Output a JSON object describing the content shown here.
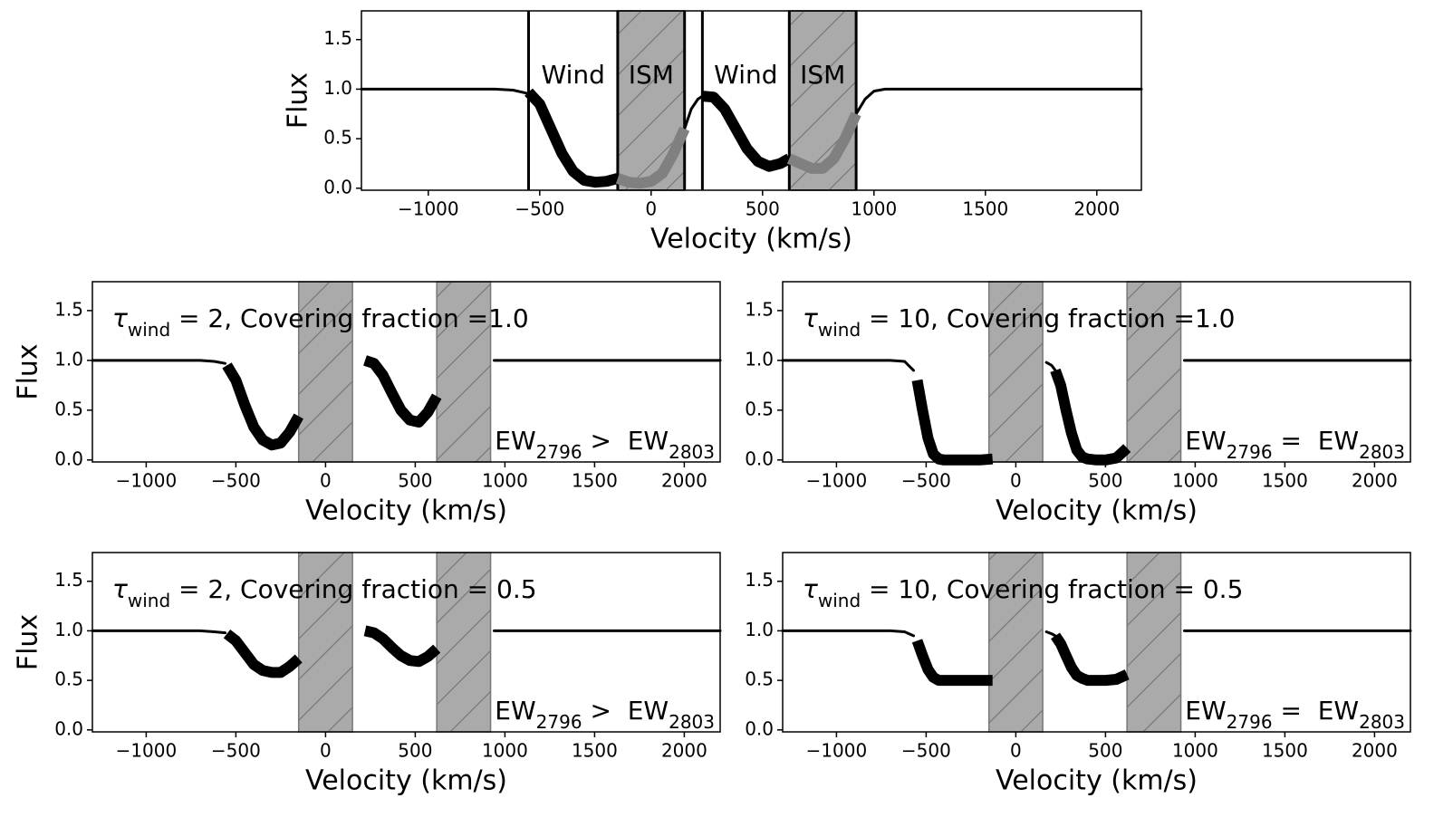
{
  "chart_data": [
    {
      "type": "line",
      "xlabel": "Velocity (km/s)",
      "ylabel": "Flux",
      "xlim": [
        -1300,
        2200
      ],
      "ylim": [
        -0.02,
        1.79
      ],
      "xticks": [
        {
          "value": -1000,
          "label": "−1000"
        },
        {
          "value": -500,
          "label": "−500"
        },
        0,
        500,
        1000,
        1500,
        2000
      ],
      "yticks": [
        {
          "value": 0,
          "label": "0.0"
        },
        0.5,
        {
          "value": 1,
          "label": "1.0"
        },
        1.5
      ],
      "spans": [
        [
          -150,
          150
        ],
        [
          620,
          920
        ]
      ],
      "span_color": "#aaaaaa",
      "span_edge": "#000000",
      "vlines": [
        -550,
        -150,
        150,
        230,
        620,
        920
      ],
      "region_labels": [
        "Wind",
        "ISM",
        "Wind",
        "ISM"
      ],
      "series": [
        {
          "style": "thin",
          "color": "#000000",
          "x": [
            -1300,
            -700,
            -620,
            -560,
            0,
            150,
            180,
            210,
            230,
            500,
            920,
            960,
            1000,
            1050,
            2200
          ],
          "values": [
            1,
            1,
            0.99,
            0.96,
            null,
            0.6,
            0.8,
            0.9,
            0.93,
            null,
            0.75,
            0.9,
            0.98,
            1,
            1
          ]
        },
        {
          "style": "thick",
          "color": "#000000",
          "x": [
            -550,
            -500,
            -450,
            -400,
            -350,
            -300,
            -250,
            -200,
            -150
          ],
          "values": [
            0.97,
            0.85,
            0.6,
            0.35,
            0.17,
            0.08,
            0.06,
            0.07,
            0.1
          ]
        },
        {
          "style": "thick",
          "color": "#808080",
          "x": [
            -150,
            -100,
            -50,
            0,
            50,
            100,
            150
          ],
          "values": [
            0.1,
            0.06,
            0.05,
            0.07,
            0.15,
            0.35,
            0.6
          ]
        },
        {
          "style": "thick",
          "color": "#000000",
          "x": [
            230,
            280,
            330,
            380,
            430,
            480,
            530,
            580,
            620
          ],
          "values": [
            0.93,
            0.92,
            0.8,
            0.6,
            0.4,
            0.27,
            0.22,
            0.25,
            0.3
          ]
        },
        {
          "style": "thick",
          "color": "#808080",
          "x": [
            620,
            670,
            720,
            770,
            820,
            870,
            920
          ],
          "values": [
            0.3,
            0.25,
            0.2,
            0.2,
            0.3,
            0.5,
            0.75
          ]
        }
      ]
    },
    {
      "type": "line",
      "xlabel": "Velocity (km/s)",
      "ylabel": "Flux",
      "xlim": [
        -1300,
        2200
      ],
      "ylim": [
        -0.02,
        1.79
      ],
      "xticks": [
        {
          "value": -1000,
          "label": "−1000"
        },
        {
          "value": -500,
          "label": "−500"
        },
        0,
        500,
        1000,
        1500,
        2000
      ],
      "yticks": [
        {
          "value": 0,
          "label": "0.0"
        },
        0.5,
        {
          "value": 1,
          "label": "1.0"
        },
        1.5
      ],
      "spans": [
        [
          -150,
          150
        ],
        [
          620,
          920
        ]
      ],
      "span_color": "#aaaaaa",
      "span_edge": "#777777",
      "annotations": [
        {
          "parts": [
            {
              "text": "τ"
            },
            {
              "text": "wind",
              "sub": true
            },
            {
              "text": " = 2, Covering fraction =1.0"
            }
          ]
        },
        {
          "parts": [
            {
              "text": "EW"
            },
            {
              "text": "2796",
              "sub": true
            },
            {
              "text": " >  EW"
            },
            {
              "text": "2803",
              "sub": true
            }
          ]
        }
      ],
      "series": [
        {
          "style": "thin",
          "color": "#000000",
          "x": [
            -1300,
            -700,
            -620,
            -560,
            0,
            940,
            2200
          ],
          "values": [
            1,
            1,
            0.99,
            0.97,
            null,
            1,
            1
          ]
        },
        {
          "style": "thick",
          "color": "#000000",
          "x": [
            -550,
            -500,
            -450,
            -400,
            -350,
            -300,
            -250,
            -200,
            -150
          ],
          "values": [
            0.95,
            0.8,
            0.55,
            0.33,
            0.2,
            0.15,
            0.17,
            0.28,
            0.44
          ]
        },
        {
          "style": "thick",
          "color": "#000000",
          "x": [
            220,
            270,
            320,
            370,
            420,
            470,
            520,
            570,
            620
          ],
          "values": [
            1,
            0.97,
            0.85,
            0.67,
            0.5,
            0.4,
            0.38,
            0.48,
            0.64
          ]
        }
      ]
    },
    {
      "type": "line",
      "xlabel": "Velocity (km/s)",
      "xlim": [
        -1300,
        2200
      ],
      "ylim": [
        -0.02,
        1.79
      ],
      "xticks": [
        {
          "value": -1000,
          "label": "−1000"
        },
        {
          "value": -500,
          "label": "−500"
        },
        0,
        500,
        1000,
        1500,
        2000
      ],
      "yticks": [
        {
          "value": 0,
          "label": "0.0"
        },
        0.5,
        {
          "value": 1,
          "label": "1.0"
        },
        1.5
      ],
      "spans": [
        [
          -150,
          150
        ],
        [
          620,
          920
        ]
      ],
      "span_color": "#aaaaaa",
      "span_edge": "#777777",
      "annotations": [
        {
          "parts": [
            {
              "text": "τ"
            },
            {
              "text": "wind",
              "sub": true
            },
            {
              "text": " = 10, Covering fraction =1.0"
            }
          ]
        },
        {
          "parts": [
            {
              "text": "EW"
            },
            {
              "text": "2796",
              "sub": true
            },
            {
              "text": " =  EW"
            },
            {
              "text": "2803",
              "sub": true
            }
          ]
        }
      ],
      "series": [
        {
          "style": "thin",
          "color": "#000000",
          "x": [
            -1300,
            -700,
            -620,
            -570,
            0,
            170,
            200,
            220,
            500,
            940,
            2200
          ],
          "values": [
            1,
            1,
            0.99,
            0.9,
            null,
            0.98,
            0.95,
            0.9,
            null,
            1,
            1
          ]
        },
        {
          "style": "thick",
          "color": "#000000",
          "x": [
            -550,
            -520,
            -490,
            -460,
            -430,
            -400,
            -300,
            -200,
            -130
          ],
          "values": [
            0.8,
            0.5,
            0.22,
            0.06,
            0.01,
            0,
            0,
            0,
            0.01
          ]
        },
        {
          "style": "thick",
          "color": "#000000",
          "x": [
            220,
            250,
            280,
            310,
            340,
            370,
            400,
            450,
            500,
            560,
            620
          ],
          "values": [
            0.9,
            0.75,
            0.5,
            0.27,
            0.1,
            0.03,
            0.01,
            0,
            0,
            0.02,
            0.12
          ]
        }
      ]
    },
    {
      "type": "line",
      "xlabel": "Velocity (km/s)",
      "ylabel": "Flux",
      "xlim": [
        -1300,
        2200
      ],
      "ylim": [
        -0.02,
        1.79
      ],
      "xticks": [
        {
          "value": -1000,
          "label": "−1000"
        },
        {
          "value": -500,
          "label": "−500"
        },
        0,
        500,
        1000,
        1500,
        2000
      ],
      "yticks": [
        {
          "value": 0,
          "label": "0.0"
        },
        0.5,
        {
          "value": 1,
          "label": "1.0"
        },
        1.5
      ],
      "spans": [
        [
          -150,
          150
        ],
        [
          620,
          920
        ]
      ],
      "span_color": "#aaaaaa",
      "span_edge": "#777777",
      "annotations": [
        {
          "parts": [
            {
              "text": "τ"
            },
            {
              "text": "wind",
              "sub": true
            },
            {
              "text": " = 2, Covering fraction = 0.5"
            }
          ]
        },
        {
          "parts": [
            {
              "text": "EW"
            },
            {
              "text": "2796",
              "sub": true
            },
            {
              "text": " >  EW"
            },
            {
              "text": "2803",
              "sub": true
            }
          ]
        }
      ],
      "series": [
        {
          "style": "thin",
          "color": "#000000",
          "x": [
            -1300,
            -700,
            -620,
            -560,
            0,
            940,
            2200
          ],
          "values": [
            1,
            1,
            0.99,
            0.98,
            null,
            1,
            1
          ]
        },
        {
          "style": "thick",
          "color": "#000000",
          "x": [
            -550,
            -500,
            -450,
            -400,
            -350,
            -300,
            -250,
            -200,
            -150
          ],
          "values": [
            0.97,
            0.9,
            0.78,
            0.66,
            0.6,
            0.58,
            0.58,
            0.64,
            0.72
          ]
        },
        {
          "style": "thick",
          "color": "#000000",
          "x": [
            220,
            270,
            320,
            370,
            420,
            470,
            520,
            570,
            620
          ],
          "values": [
            1,
            0.98,
            0.92,
            0.83,
            0.75,
            0.7,
            0.69,
            0.74,
            0.82
          ]
        }
      ]
    },
    {
      "type": "line",
      "xlabel": "Velocity (km/s)",
      "xlim": [
        -1300,
        2200
      ],
      "ylim": [
        -0.02,
        1.79
      ],
      "xticks": [
        {
          "value": -1000,
          "label": "−1000"
        },
        {
          "value": -500,
          "label": "−500"
        },
        0,
        500,
        1000,
        1500,
        2000
      ],
      "yticks": [
        {
          "value": 0,
          "label": "0.0"
        },
        0.5,
        {
          "value": 1,
          "label": "1.0"
        },
        1.5
      ],
      "spans": [
        [
          -150,
          150
        ],
        [
          620,
          920
        ]
      ],
      "span_color": "#aaaaaa",
      "span_edge": "#777777",
      "annotations": [
        {
          "parts": [
            {
              "text": "τ"
            },
            {
              "text": "wind",
              "sub": true
            },
            {
              "text": " = 10, Covering fraction = 0.5"
            }
          ]
        },
        {
          "parts": [
            {
              "text": "EW"
            },
            {
              "text": "2796",
              "sub": true
            },
            {
              "text": " =  EW"
            },
            {
              "text": "2803",
              "sub": true
            }
          ]
        }
      ],
      "series": [
        {
          "style": "thin",
          "color": "#000000",
          "x": [
            -1300,
            -700,
            -620,
            -570,
            0,
            170,
            200,
            220,
            500,
            940,
            2200
          ],
          "values": [
            1,
            1,
            0.99,
            0.95,
            null,
            0.99,
            0.97,
            0.95,
            null,
            1,
            1
          ]
        },
        {
          "style": "thick",
          "color": "#000000",
          "x": [
            -550,
            -520,
            -490,
            -460,
            -430,
            -400,
            -300,
            -200,
            -130
          ],
          "values": [
            0.9,
            0.75,
            0.61,
            0.53,
            0.5,
            0.5,
            0.5,
            0.5,
            0.5
          ]
        },
        {
          "style": "thick",
          "color": "#000000",
          "x": [
            220,
            250,
            280,
            310,
            340,
            370,
            400,
            450,
            500,
            560,
            620
          ],
          "values": [
            0.95,
            0.87,
            0.75,
            0.63,
            0.55,
            0.52,
            0.5,
            0.5,
            0.5,
            0.51,
            0.56
          ]
        }
      ]
    }
  ]
}
